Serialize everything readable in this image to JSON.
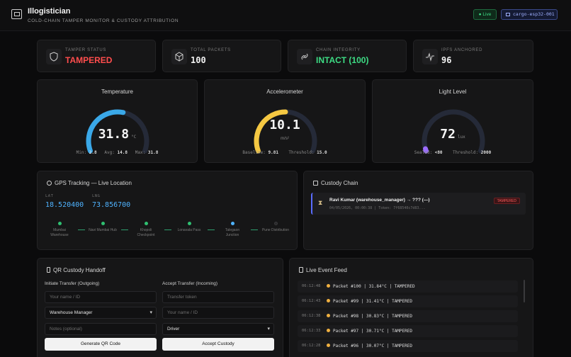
{
  "app": {
    "title": "Illogistician",
    "subtitle": "COLD-CHAIN TAMPER MONITOR & CUSTODY ATTRIBUTION",
    "live_label": "● Live",
    "device": "cargo-esp32-001"
  },
  "stats": [
    {
      "label": "TAMPER STATUS",
      "value": "TAMPERED",
      "icon": "shield-icon",
      "color": "#ff4d4d"
    },
    {
      "label": "TOTAL PACKETS",
      "value": "100",
      "icon": "cube-icon",
      "color": "#f2f2f2"
    },
    {
      "label": "CHAIN INTEGRITY",
      "value": "INTACT (100)",
      "icon": "link-icon",
      "color": "#3ddc84"
    },
    {
      "label": "IPFS ANCHORED",
      "value": "96",
      "icon": "pulse-icon",
      "color": "#f2f2f2"
    }
  ],
  "gauges": {
    "temperature": {
      "title": "Temperature",
      "value": "31.8",
      "unit": "°C",
      "fill": 0.55,
      "color": "#3aa8e8",
      "s1l": "Min:",
      "s1v": "2.8",
      "s2l": "Avg:",
      "s2v": "14.8",
      "s3l": "Max:",
      "s3v": "31.8"
    },
    "accelerometer": {
      "title": "Accelerometer",
      "value": "10.1",
      "unit": "m/s²",
      "fill": 0.5,
      "color": "#f5c842",
      "s1l": "Baseline:",
      "s1v": "9.81",
      "s2l": "Threshold:",
      "s2v": "15.0"
    },
    "light": {
      "title": "Light Level",
      "value": "72",
      "unit": "lux",
      "fill": 0.02,
      "color": "#9b6cff",
      "s1l": "Sealed:",
      "s1v": "<80",
      "s2l": "Threshold:",
      "s2v": "2000"
    }
  },
  "gps": {
    "title": "GPS Tracking — Live Location",
    "lat_label": "LAT",
    "lat": "18.520400",
    "lng_label": "LNG",
    "lng": "73.856700",
    "waypoints": [
      {
        "label": "Mumbai Warehouse",
        "status": "done"
      },
      {
        "label": "Navi Mumbai Hub",
        "status": "done"
      },
      {
        "label": "Khopoli Checkpoint",
        "status": "done"
      },
      {
        "label": "Lonavala Pass",
        "status": "done"
      },
      {
        "label": "Talegaon Junction",
        "status": "current"
      },
      {
        "label": "Pune Distribution",
        "status": "pending"
      }
    ]
  },
  "custody": {
    "title": "Custody Chain",
    "entry_title": "Ravi Kumar (warehouse_manager) → ??? (—)",
    "entry_meta": "04/05/2026, 00:00:38 | Token: 7f68540c7d83...",
    "entry_badge": "TAMPERED"
  },
  "handoff": {
    "title": "QR Custody Handoff",
    "outgoing_title": "Initiate Transfer (Outgoing)",
    "outgoing_name_ph": "Your name / ID",
    "outgoing_role": "Warehouse Manager",
    "notes_ph": "Notes (optional)",
    "generate_label": "Generate QR Code",
    "incoming_title": "Accept Transfer (Incoming)",
    "token_ph": "Transfer token",
    "incoming_name_ph": "Your name / ID",
    "incoming_role": "Driver",
    "accept_label": "Accept Custody"
  },
  "feed": {
    "title": "Live Event Feed",
    "events": [
      {
        "time": "06:12:48",
        "text": "Packet #100 | 31.84°C | TAMPERED"
      },
      {
        "time": "06:12:43",
        "text": "Packet #99 | 31.41°C | TAMPERED"
      },
      {
        "time": "06:12:38",
        "text": "Packet #98 | 30.83°C | TAMPERED"
      },
      {
        "time": "06:12:33",
        "text": "Packet #97 | 30.71°C | TAMPERED"
      },
      {
        "time": "06:12:28",
        "text": "Packet #96 | 30.07°C | TAMPERED"
      }
    ]
  }
}
